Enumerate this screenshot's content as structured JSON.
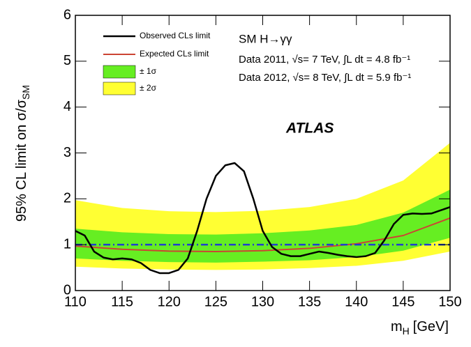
{
  "chart_data": {
    "type": "line",
    "y_label": "95% CL limit on σ/σ",
    "y_label_sub": "SM",
    "x_label": "m",
    "x_label_sub": "H",
    "x_label_unit": "[GeV]",
    "xlim": [
      110,
      150
    ],
    "ylim": [
      0,
      6
    ],
    "xticks": [
      110,
      115,
      120,
      125,
      130,
      135,
      140,
      145,
      150
    ],
    "yticks": [
      0,
      1,
      2,
      3,
      4,
      5,
      6
    ],
    "annotations": [
      "SM H→γγ",
      "Data 2011, √s= 7 TeV, ∫L dt = 4.8 fb⁻¹",
      "Data 2012, √s= 8 TeV, ∫L dt = 5.9 fb⁻¹",
      "ATLAS"
    ],
    "reference_line": {
      "value": 1,
      "color": "#1f3fcf"
    },
    "bands": [
      {
        "name": "± 2σ",
        "color": "#ffff33",
        "x": [
          110,
          115,
          120,
          125,
          130,
          135,
          140,
          145,
          150
        ],
        "lower": [
          0.52,
          0.48,
          0.46,
          0.45,
          0.46,
          0.49,
          0.54,
          0.65,
          0.85
        ],
        "upper": [
          1.97,
          1.8,
          1.73,
          1.71,
          1.74,
          1.82,
          2.0,
          2.4,
          3.22
        ]
      },
      {
        "name": "± 1σ",
        "color": "#66ee22",
        "x": [
          110,
          115,
          120,
          125,
          130,
          135,
          140,
          145,
          150
        ],
        "lower": [
          0.7,
          0.65,
          0.62,
          0.61,
          0.63,
          0.66,
          0.73,
          0.87,
          1.15
        ],
        "upper": [
          1.35,
          1.27,
          1.23,
          1.22,
          1.25,
          1.31,
          1.43,
          1.7,
          2.2
        ]
      }
    ],
    "series": [
      {
        "name": "Expected CLs limit",
        "color": "#cc4433",
        "x": [
          110,
          115,
          120,
          125,
          130,
          135,
          140,
          145,
          150
        ],
        "values": [
          0.97,
          0.9,
          0.86,
          0.85,
          0.87,
          0.92,
          1.02,
          1.2,
          1.58
        ]
      },
      {
        "name": "Observed CLs limit",
        "color": "#000000",
        "x": [
          110,
          111,
          112,
          113,
          114,
          115,
          116,
          117,
          118,
          119,
          120,
          121,
          122,
          123,
          124,
          125,
          126,
          127,
          128,
          129,
          130,
          131,
          132,
          133,
          134,
          135,
          136,
          137,
          138,
          139,
          140,
          141,
          142,
          143,
          144,
          145,
          146,
          147,
          148,
          149,
          150
        ],
        "values": [
          1.3,
          1.2,
          0.85,
          0.72,
          0.68,
          0.7,
          0.68,
          0.6,
          0.45,
          0.38,
          0.38,
          0.45,
          0.7,
          1.3,
          2.0,
          2.5,
          2.73,
          2.78,
          2.6,
          2.0,
          1.3,
          0.95,
          0.8,
          0.75,
          0.75,
          0.8,
          0.85,
          0.82,
          0.78,
          0.75,
          0.73,
          0.75,
          0.82,
          1.1,
          1.45,
          1.65,
          1.68,
          1.67,
          1.68,
          1.75,
          1.82
        ]
      }
    ]
  }
}
